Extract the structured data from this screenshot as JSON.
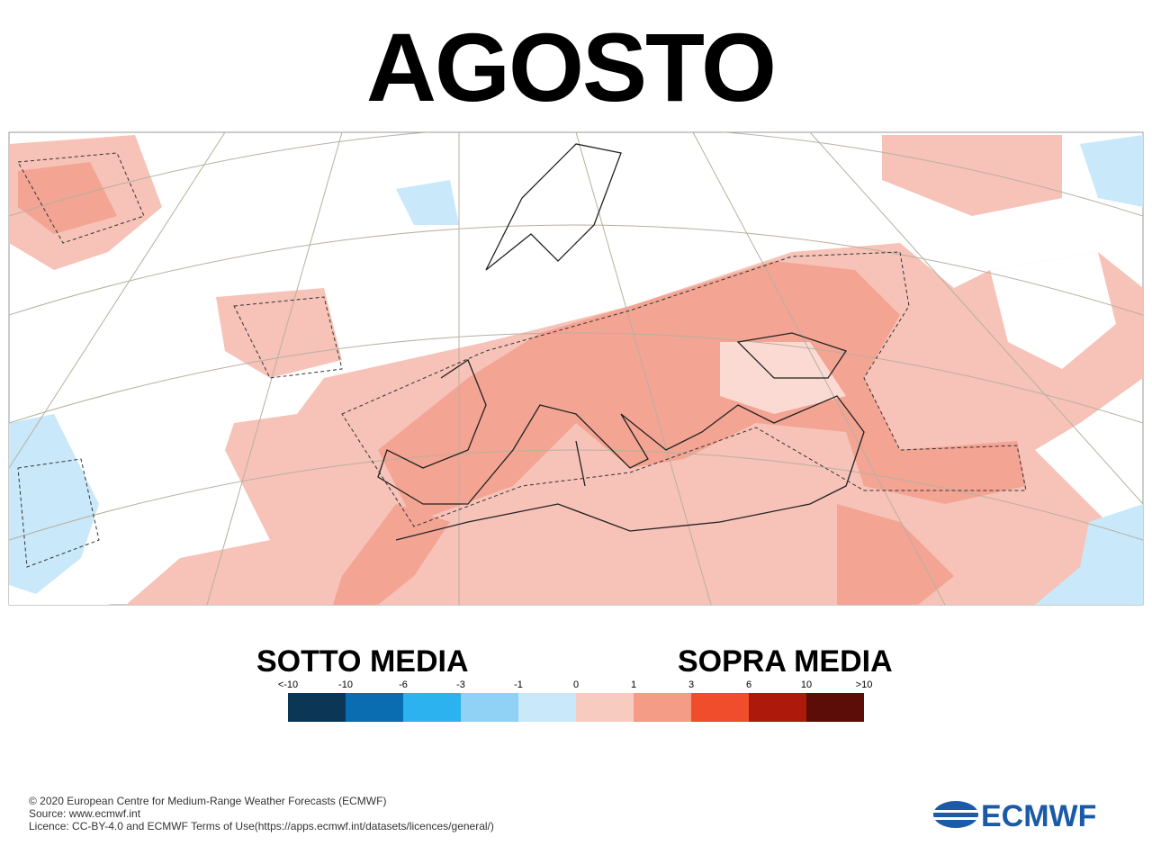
{
  "header": {
    "title": "AGOSTO"
  },
  "legend": {
    "below_label": "SOTTO MEDIA",
    "above_label": "SOPRA MEDIA",
    "ticks": [
      "<-10",
      "-10",
      "-6",
      "-3",
      "-1",
      "0",
      "1",
      "3",
      "6",
      "10",
      ">10"
    ],
    "colors": [
      "#0b3656",
      "#0a6db2",
      "#2cb2ef",
      "#8fd2f6",
      "#c9e8fa",
      "#f8cbc1",
      "#f49c86",
      "#f04d2d",
      "#ad1a0b",
      "#5c0d08"
    ]
  },
  "footer": {
    "lines": [
      "© 2020 European Centre for Medium-Range Weather Forecasts (ECMWF)",
      "Source: www.ecmwf.int",
      "Licence: CC-BY-4.0 and ECMWF Terms of Use(https://apps.ecmwf.int/datasets/licences/general/)"
    ],
    "logo": "ECMWF"
  }
}
